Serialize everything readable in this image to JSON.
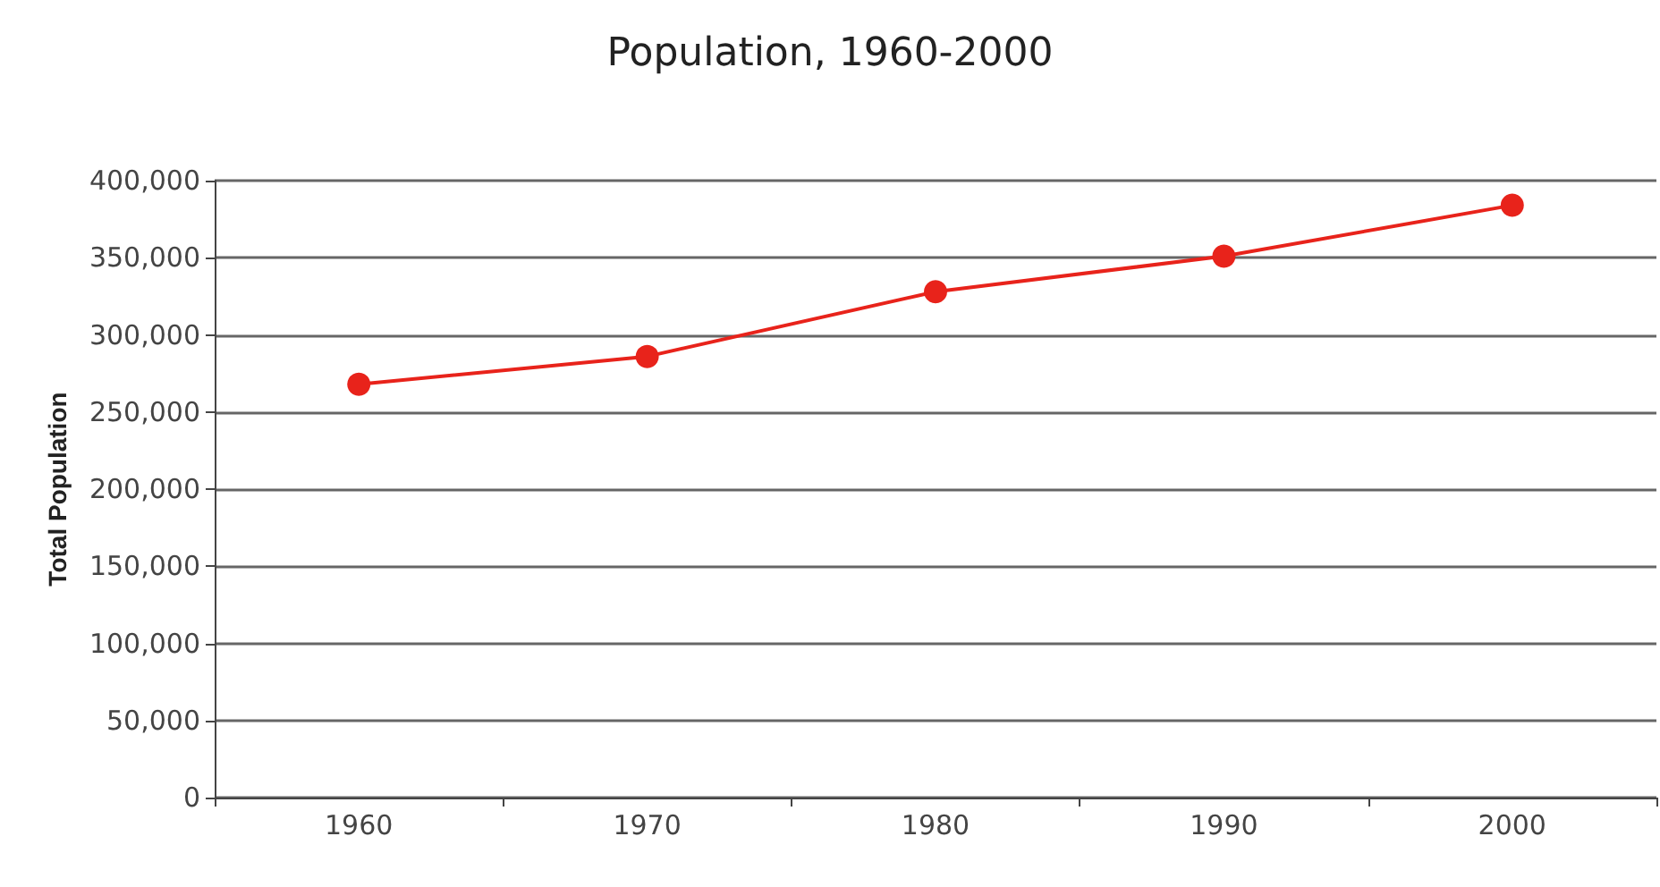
{
  "chart_data": {
    "type": "line",
    "title": "Population, 1960-2000",
    "ylabel": "Total Population",
    "categories": [
      "1960",
      "1970",
      "1980",
      "1990",
      "2000"
    ],
    "series": [
      {
        "color": "#e8231b",
        "values": [
          268000,
          286000,
          328000,
          351000,
          384000
        ]
      }
    ],
    "ylim": [
      0,
      400000
    ],
    "yticks": [
      0,
      {
        "value": 50000,
        "label": "50,000"
      },
      {
        "value": 100000,
        "label": "100,000"
      },
      {
        "value": 150000,
        "label": "150,000"
      },
      {
        "value": 200000,
        "label": "200,000"
      },
      {
        "value": 250000,
        "label": "250,000"
      },
      {
        "value": 300000,
        "label": "300,000"
      },
      {
        "value": 350000,
        "label": "350,000"
      },
      {
        "value": 400000,
        "label": "400,000"
      }
    ],
    "grid": "y",
    "marker": "circle"
  }
}
